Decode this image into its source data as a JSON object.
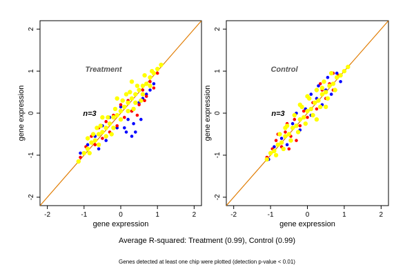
{
  "chart_data": [
    {
      "type": "scatter",
      "title": "Treatment",
      "annotation": "n=3",
      "xlabel": "gene expression",
      "ylabel": "gene expression",
      "xlim": [
        -2.2,
        2.2
      ],
      "ylim": [
        -2.2,
        2.2
      ],
      "xticks": [
        "-2",
        "-1",
        "0",
        "1",
        "2"
      ],
      "yticks": [
        "-2",
        "-1",
        "0",
        "1",
        "2"
      ],
      "diagonal": "y = x",
      "grid": false,
      "series": [
        {
          "color": "#0000ff",
          "values": [
            [
              -1.1,
              -0.95
            ],
            [
              -0.9,
              -0.75
            ],
            [
              -0.7,
              -0.55
            ],
            [
              -0.5,
              -0.3
            ],
            [
              -0.4,
              -0.65
            ],
            [
              -0.3,
              -0.1
            ],
            [
              -0.1,
              -0.35
            ],
            [
              0.0,
              0.15
            ],
            [
              0.1,
              -0.35
            ],
            [
              0.2,
              -0.15
            ],
            [
              0.3,
              0.05
            ],
            [
              0.35,
              -0.25
            ],
            [
              0.4,
              -0.45
            ],
            [
              0.5,
              0.25
            ],
            [
              0.55,
              -0.15
            ],
            [
              0.6,
              0.35
            ],
            [
              0.7,
              0.45
            ],
            [
              0.8,
              0.55
            ],
            [
              0.9,
              0.7
            ],
            [
              0.3,
              -0.55
            ],
            [
              -0.6,
              -0.85
            ],
            [
              0.15,
              -0.45
            ]
          ]
        },
        {
          "color": "#ff0000",
          "values": [
            [
              -1.1,
              -1.05
            ],
            [
              -0.95,
              -0.8
            ],
            [
              -0.8,
              -0.55
            ],
            [
              -0.7,
              -0.75
            ],
            [
              -0.6,
              -0.35
            ],
            [
              -0.5,
              -0.6
            ],
            [
              -0.4,
              -0.2
            ],
            [
              -0.3,
              -0.45
            ],
            [
              -0.2,
              -0.05
            ],
            [
              -0.1,
              -0.3
            ],
            [
              0.0,
              0.2
            ],
            [
              0.1,
              -0.1
            ],
            [
              0.2,
              0.3
            ],
            [
              0.3,
              0.05
            ],
            [
              0.4,
              0.45
            ],
            [
              0.5,
              0.2
            ],
            [
              0.6,
              0.55
            ],
            [
              0.7,
              0.4
            ],
            [
              0.8,
              0.75
            ],
            [
              0.9,
              0.6
            ],
            [
              1.0,
              0.95
            ],
            [
              -0.85,
              -0.95
            ],
            [
              0.45,
              -0.05
            ],
            [
              0.65,
              0.3
            ]
          ]
        },
        {
          "color": "#ffff00",
          "values": [
            [
              -1.15,
              -1.15
            ],
            [
              -1.0,
              -0.95
            ],
            [
              -0.9,
              -0.85
            ],
            [
              -0.8,
              -0.7
            ],
            [
              -0.7,
              -0.65
            ],
            [
              -0.6,
              -0.5
            ],
            [
              -0.5,
              -0.45
            ],
            [
              -0.4,
              -0.35
            ],
            [
              -0.3,
              -0.25
            ],
            [
              -0.2,
              -0.1
            ],
            [
              -0.1,
              -0.05
            ],
            [
              0.0,
              0.05
            ],
            [
              0.1,
              0.15
            ],
            [
              0.2,
              0.25
            ],
            [
              0.3,
              0.35
            ],
            [
              0.4,
              0.45
            ],
            [
              0.5,
              0.55
            ],
            [
              0.6,
              0.65
            ],
            [
              0.7,
              0.7
            ],
            [
              0.8,
              0.85
            ],
            [
              0.9,
              0.95
            ],
            [
              1.0,
              1.05
            ],
            [
              1.1,
              1.15
            ],
            [
              -0.75,
              -0.5
            ],
            [
              -0.55,
              -0.3
            ],
            [
              -0.35,
              -0.1
            ],
            [
              -0.15,
              0.1
            ],
            [
              0.05,
              0.3
            ],
            [
              0.25,
              0.5
            ],
            [
              0.45,
              0.65
            ],
            [
              0.65,
              0.9
            ],
            [
              0.85,
              1.0
            ],
            [
              -0.85,
              -0.95
            ],
            [
              -0.6,
              -0.75
            ],
            [
              -0.4,
              -0.55
            ],
            [
              -0.2,
              -0.35
            ],
            [
              0.0,
              -0.15
            ],
            [
              0.2,
              0.05
            ],
            [
              0.4,
              0.25
            ],
            [
              0.6,
              0.45
            ],
            [
              0.8,
              0.65
            ],
            [
              -0.9,
              -0.6
            ],
            [
              -0.5,
              -0.1
            ],
            [
              -0.1,
              0.35
            ],
            [
              0.3,
              0.75
            ],
            [
              0.15,
              0.45
            ],
            [
              -0.25,
              -0.5
            ],
            [
              0.55,
              0.3
            ],
            [
              0.35,
              0.1
            ],
            [
              -0.65,
              -0.35
            ]
          ]
        }
      ]
    },
    {
      "type": "scatter",
      "title": "Control",
      "annotation": "n=3",
      "xlabel": "gene expression",
      "ylabel": "gene expression",
      "xlim": [
        -2.2,
        2.2
      ],
      "ylim": [
        -2.2,
        2.2
      ],
      "xticks": [
        "-2",
        "-1",
        "0",
        "1",
        "2"
      ],
      "yticks": [
        "-2",
        "-1",
        "0",
        "1",
        "2"
      ],
      "diagonal": "y = x",
      "grid": false,
      "series": [
        {
          "color": "#0000ff",
          "values": [
            [
              -1.05,
              -1.1
            ],
            [
              -0.9,
              -0.8
            ],
            [
              -0.7,
              -0.6
            ],
            [
              -0.55,
              -0.75
            ],
            [
              -0.4,
              -0.25
            ],
            [
              -0.2,
              -0.4
            ],
            [
              -0.05,
              0.1
            ],
            [
              0.1,
              -0.05
            ],
            [
              0.25,
              0.35
            ],
            [
              0.4,
              0.2
            ],
            [
              0.5,
              0.55
            ],
            [
              0.65,
              0.45
            ],
            [
              0.8,
              0.95
            ],
            [
              0.9,
              0.75
            ],
            [
              0.3,
              0.65
            ],
            [
              0.1,
              0.45
            ],
            [
              -0.3,
              0.0
            ],
            [
              0.55,
              0.85
            ]
          ]
        },
        {
          "color": "#ff0000",
          "values": [
            [
              -1.1,
              -1.05
            ],
            [
              -0.95,
              -0.85
            ],
            [
              -0.85,
              -0.65
            ],
            [
              -0.7,
              -0.8
            ],
            [
              -0.6,
              -0.45
            ],
            [
              -0.45,
              -0.55
            ],
            [
              -0.35,
              -0.15
            ],
            [
              -0.2,
              -0.3
            ],
            [
              -0.1,
              0.05
            ],
            [
              0.0,
              -0.1
            ],
            [
              0.15,
              0.25
            ],
            [
              0.25,
              0.1
            ],
            [
              0.4,
              0.55
            ],
            [
              0.5,
              0.35
            ],
            [
              0.6,
              0.7
            ],
            [
              0.7,
              0.55
            ],
            [
              0.85,
              0.9
            ],
            [
              -0.5,
              -0.85
            ],
            [
              -0.3,
              -0.65
            ],
            [
              0.35,
              0.7
            ],
            [
              0.7,
              0.95
            ],
            [
              -0.8,
              -0.5
            ],
            [
              -0.55,
              -0.25
            ]
          ]
        },
        {
          "color": "#ffff00",
          "values": [
            [
              -1.1,
              -1.1
            ],
            [
              -1.0,
              -0.95
            ],
            [
              -0.9,
              -0.9
            ],
            [
              -0.8,
              -0.75
            ],
            [
              -0.7,
              -0.7
            ],
            [
              -0.6,
              -0.55
            ],
            [
              -0.5,
              -0.5
            ],
            [
              -0.4,
              -0.35
            ],
            [
              -0.3,
              -0.3
            ],
            [
              -0.2,
              -0.15
            ],
            [
              -0.1,
              -0.1
            ],
            [
              0.0,
              0.05
            ],
            [
              0.1,
              0.1
            ],
            [
              0.2,
              0.25
            ],
            [
              0.3,
              0.3
            ],
            [
              0.4,
              0.45
            ],
            [
              0.5,
              0.5
            ],
            [
              0.6,
              0.65
            ],
            [
              0.7,
              0.7
            ],
            [
              0.8,
              0.85
            ],
            [
              0.9,
              0.9
            ],
            [
              1.0,
              1.0
            ],
            [
              1.1,
              1.1
            ],
            [
              -0.75,
              -0.5
            ],
            [
              -0.55,
              -0.3
            ],
            [
              -0.35,
              -0.05
            ],
            [
              -0.15,
              0.15
            ],
            [
              0.05,
              0.35
            ],
            [
              0.25,
              0.55
            ],
            [
              0.45,
              0.75
            ],
            [
              0.65,
              0.95
            ],
            [
              -0.85,
              -1.0
            ],
            [
              -0.65,
              -0.85
            ],
            [
              -0.45,
              -0.65
            ],
            [
              -0.25,
              -0.45
            ],
            [
              -0.05,
              -0.25
            ],
            [
              0.15,
              -0.05
            ],
            [
              0.35,
              0.15
            ],
            [
              0.55,
              0.35
            ],
            [
              0.75,
              0.55
            ],
            [
              -0.2,
              0.2
            ],
            [
              0.0,
              0.4
            ],
            [
              0.25,
              -0.15
            ],
            [
              0.5,
              0.15
            ],
            [
              -0.6,
              -0.35
            ],
            [
              0.4,
              0.6
            ]
          ]
        }
      ]
    }
  ],
  "footer": {
    "summary": "Average R-squared: Treatment (0.99), Control (0.99)",
    "note": "Genes detected at least one chip were plotted (detection p-value < 0.01)"
  }
}
